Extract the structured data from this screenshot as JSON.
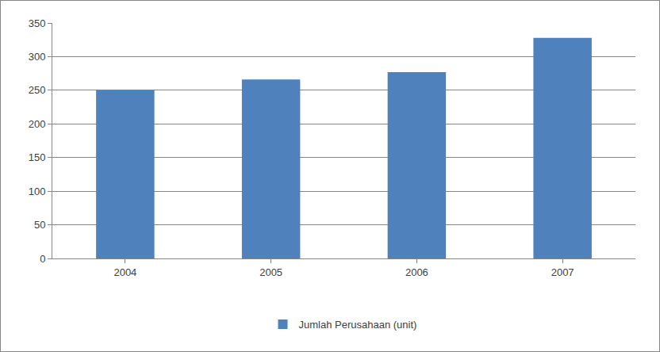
{
  "chart_data": {
    "type": "bar",
    "categories": [
      "2004",
      "2005",
      "2006",
      "2007"
    ],
    "series": [
      {
        "name": "Jumlah Perusahaan (unit)",
        "color": "#4f81bd",
        "values": [
          250,
          266,
          277,
          328
        ]
      }
    ],
    "ylim": [
      0,
      350
    ],
    "yticks": [
      0,
      50,
      100,
      150,
      200,
      250,
      300,
      350
    ],
    "grid": true,
    "legend": "bottom"
  }
}
